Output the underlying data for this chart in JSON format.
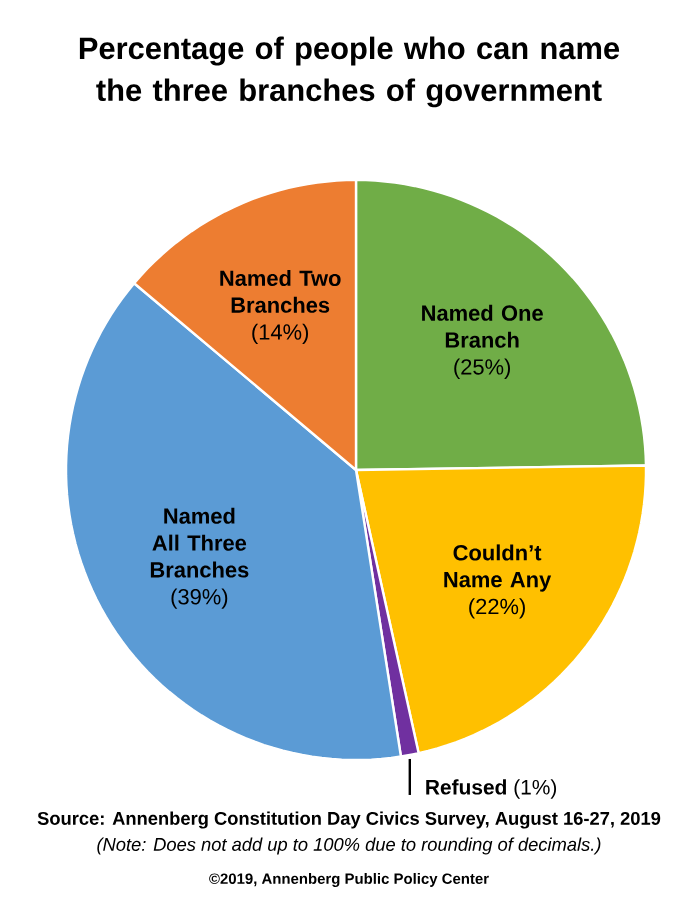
{
  "chart_data": {
    "type": "pie",
    "title": "Percentage of people who can name the three branches of government",
    "categories": [
      "Named One Branch",
      "Couldn’t Name Any",
      "Refused",
      "Named All Three Branches",
      "Named Two Branches"
    ],
    "values": [
      25,
      22,
      1,
      39,
      14
    ],
    "value_labels": [
      "(25%)",
      "(22%)",
      "(1%)",
      "(39%)",
      "(14%)"
    ],
    "colors": [
      "#70ad47",
      "#ffc000",
      "#7030a0",
      "#5b9bd5",
      "#ed7d31"
    ],
    "annotations": [
      "Source: Annenberg Constitution Day Civics Survey, August 16-27, 2019",
      "(Note: Does not add up to 100% due to rounding of decimals.)",
      "©2019, Annenberg Public Policy Center"
    ]
  }
}
